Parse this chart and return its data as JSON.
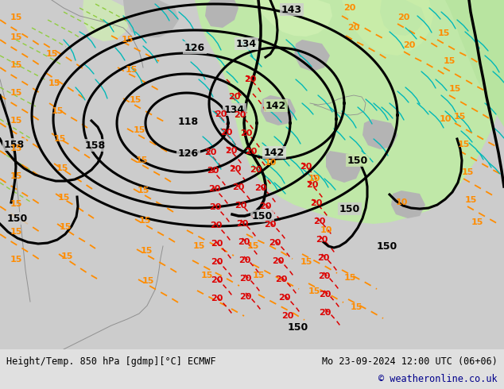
{
  "title_left": "Height/Temp. 850 hPa [gdmp][°C] ECMWF",
  "title_right": "Mo 23-09-2024 12:00 UTC (06+06)",
  "copyright": "© weatheronline.co.uk",
  "fig_width": 6.34,
  "fig_height": 4.9,
  "map_gray": "#c8c8c8",
  "map_green_light": "#c8e8b0",
  "map_green_med": "#a8d890",
  "coast_color": "#888888",
  "black_contour_lw": 2.2,
  "cyan_color": "#00b8b8",
  "orange_color": "#ff8c00",
  "red_color": "#dd0000",
  "label_bg": "#d0d0d0"
}
